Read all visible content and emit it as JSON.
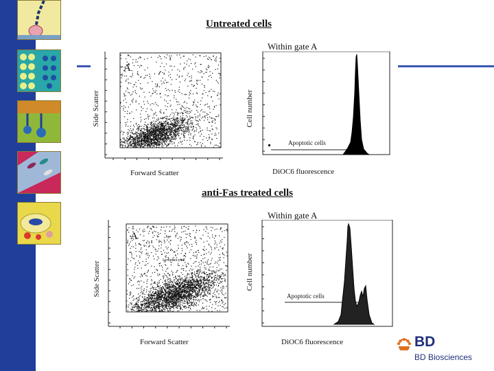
{
  "colors": {
    "sidebar": "#1f3f9a",
    "accent_rule": "#3b57b0",
    "brand": "#1f2f7a",
    "logo_orange": "#e07020"
  },
  "top": {
    "heading": "Untreated cells",
    "scatter": {
      "gate": "A",
      "xlabel": "Forward Scatter",
      "ylabel": "Side Scatter"
    },
    "histogram": {
      "title": "Within gate A",
      "xlabel": "DiOC6 fluorescence",
      "ylabel": "Cell number",
      "marker": "Apoptotic cells"
    }
  },
  "bottom": {
    "heading": "anti-Fas treated cells",
    "scatter": {
      "gate": "A",
      "xlabel": "Forward Scatter",
      "ylabel": "Side Scatter",
      "inner_note": "Lymphocytes"
    },
    "histogram": {
      "title": "Within gate A",
      "xlabel": "DiOC6 fluorescence",
      "ylabel": "Cell number",
      "marker": "Apoptotic cells"
    }
  },
  "sidebar": {
    "thumbnails": [
      {
        "icon": "cell-membrane-icon"
      },
      {
        "icon": "cell-grid-icon"
      },
      {
        "icon": "receptor-icon"
      },
      {
        "icon": "tissue-icon"
      },
      {
        "icon": "organelle-icon"
      }
    ]
  },
  "logo": {
    "mark": "BD",
    "name": "BD Biosciences"
  }
}
